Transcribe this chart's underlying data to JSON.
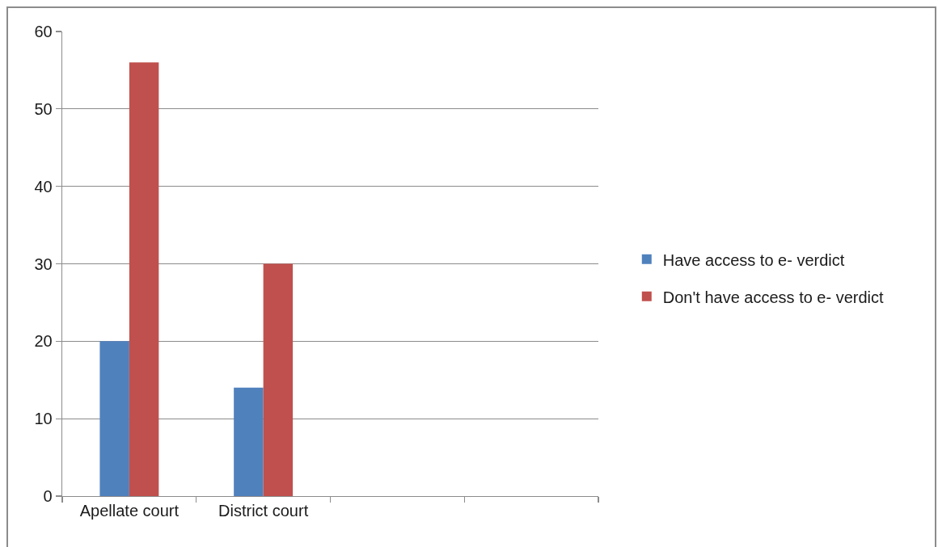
{
  "chart_data": {
    "type": "bar",
    "categories": [
      "Apellate court",
      "District court",
      null,
      null
    ],
    "series": [
      {
        "name": "Have access to e- verdict",
        "color": "#4f81bd",
        "values": [
          20,
          14,
          null,
          null
        ]
      },
      {
        "name": "Don't have access to e- verdict",
        "color": "#c0504d",
        "values": [
          56,
          30,
          null,
          null
        ]
      }
    ],
    "ylim": [
      0,
      60
    ],
    "yticks": [
      0,
      10,
      20,
      30,
      40,
      50,
      60
    ],
    "grid": "y",
    "legend": "right"
  }
}
